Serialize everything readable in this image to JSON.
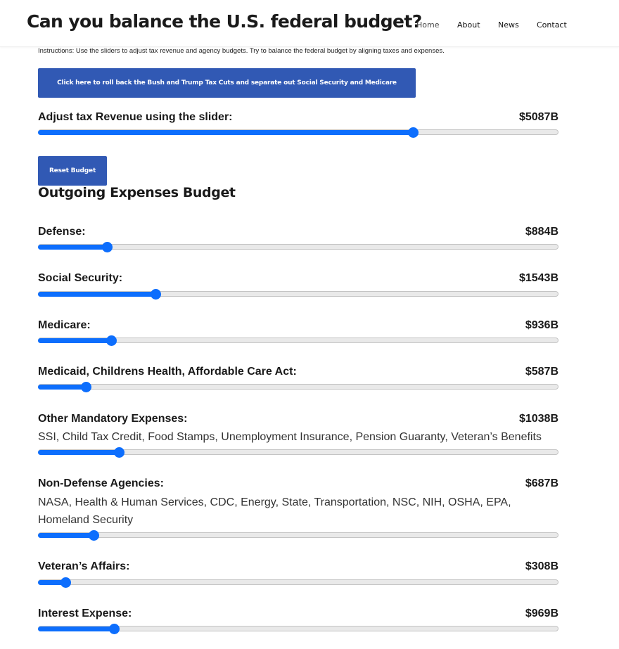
{
  "header": {
    "title": "Can you balance the U.S. federal budget?",
    "nav": [
      "Home",
      "About",
      "News",
      "Contact"
    ]
  },
  "instructions": "Instructions: Use the sliders to adjust tax revenue and agency budgets. Try to balance the federal budget by aligning taxes and expenses.",
  "rollback_button": "Click here to roll back the Bush and Trump Tax Cuts and separate out Social Security and Medicare",
  "tax": {
    "label": "Adjust tax Revenue using the slider:",
    "value": "$5087B",
    "level": 0.72
  },
  "reset_button": "Reset Budget",
  "expenses_heading": "Outgoing Expenses Budget",
  "expenses": [
    {
      "label": "Defense:",
      "value": "$884B",
      "level": 0.133
    },
    {
      "label": "Social Security:",
      "value": "$1543B",
      "level": 0.225
    },
    {
      "label": "Medicare:",
      "value": "$936B",
      "level": 0.14
    },
    {
      "label": "Medicaid, Childrens Health, Affordable Care Act:",
      "value": "$587B",
      "level": 0.092
    },
    {
      "label": "Other Mandatory Expenses:",
      "value": "$1038B",
      "level": 0.155,
      "description": "SSI, Child Tax Credit, Food Stamps, Unemployment Insurance, Pension Guaranty, Veteran’s Benefits"
    },
    {
      "label": "Non-Defense Agencies:",
      "value": "$687B",
      "level": 0.107,
      "description": "NASA, Health & Human Services, CDC, Energy, State, Transportation, NSC, NIH, OSHA, EPA, Homeland Security"
    },
    {
      "label": "Veteran’s Affairs:",
      "value": "$308B",
      "level": 0.053
    },
    {
      "label": "Interest Expense:",
      "value": "$969B",
      "level": 0.146
    }
  ]
}
